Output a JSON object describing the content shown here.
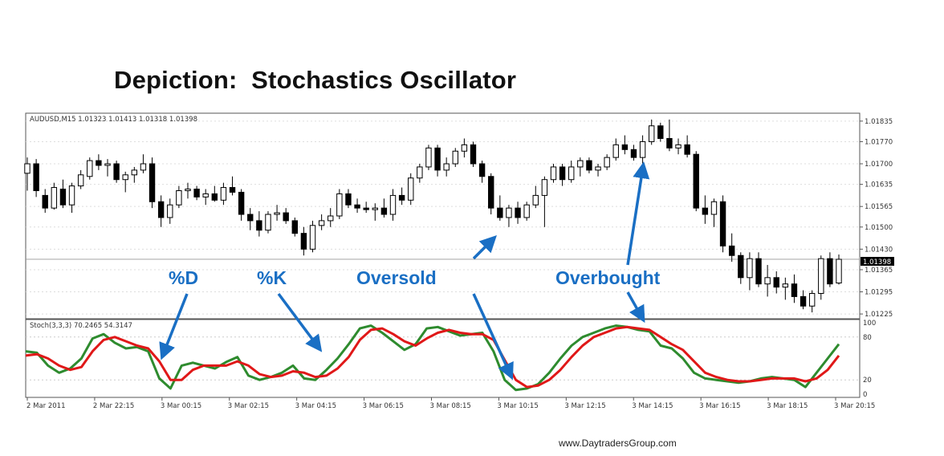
{
  "title": "Depiction:  Stochastics Oscillator",
  "footer": "www.DaytradersGroup.com",
  "chart_data": [
    {
      "type": "candlestick",
      "info": "AUDUSD,M15  1.01323 1.01413 1.01318 1.01398",
      "current_price_label": "1.01398",
      "price_ticks": [
        "1.01835",
        "1.01770",
        "1.01700",
        "1.01635",
        "1.01565",
        "1.01500",
        "1.01430",
        "1.01365",
        "1.01295",
        "1.01225"
      ],
      "ylim": [
        1.0121,
        1.0186
      ],
      "current_price": 1.01398,
      "candles": [
        [
          1.0167,
          1.0172,
          1.01615,
          1.017
        ],
        [
          1.017,
          1.01715,
          1.01595,
          1.01615
        ],
        [
          1.016,
          1.0162,
          1.01545,
          1.0156
        ],
        [
          1.0156,
          1.0164,
          1.01555,
          1.01625
        ],
        [
          1.0162,
          1.0165,
          1.0156,
          1.0157
        ],
        [
          1.0157,
          1.0164,
          1.01545,
          1.0163
        ],
        [
          1.0163,
          1.0168,
          1.0162,
          1.01665
        ],
        [
          1.0166,
          1.0172,
          1.0165,
          1.0171
        ],
        [
          1.0171,
          1.0173,
          1.0168,
          1.01695
        ],
        [
          1.01695,
          1.01715,
          1.0166,
          1.017
        ],
        [
          1.017,
          1.0171,
          1.0164,
          1.0165
        ],
        [
          1.0165,
          1.01675,
          1.0161,
          1.01665
        ],
        [
          1.01665,
          1.0169,
          1.0164,
          1.0168
        ],
        [
          1.0168,
          1.0173,
          1.0167,
          1.017
        ],
        [
          1.017,
          1.0172,
          1.0156,
          1.0158
        ],
        [
          1.0158,
          1.016,
          1.015,
          1.0153
        ],
        [
          1.0153,
          1.0159,
          1.0151,
          1.0157
        ],
        [
          1.0157,
          1.0163,
          1.0156,
          1.01615
        ],
        [
          1.01615,
          1.0164,
          1.0159,
          1.0162
        ],
        [
          1.0162,
          1.0163,
          1.01585,
          1.01595
        ],
        [
          1.01595,
          1.0162,
          1.0157,
          1.01605
        ],
        [
          1.01605,
          1.0163,
          1.0158,
          1.01585
        ],
        [
          1.01585,
          1.0164,
          1.0157,
          1.01625
        ],
        [
          1.01625,
          1.0166,
          1.016,
          1.0161
        ],
        [
          1.0161,
          1.0162,
          1.0152,
          1.0154
        ],
        [
          1.0154,
          1.0156,
          1.0149,
          1.0152
        ],
        [
          1.0152,
          1.0155,
          1.0147,
          1.0149
        ],
        [
          1.0149,
          1.0155,
          1.0148,
          1.0154
        ],
        [
          1.0154,
          1.0157,
          1.0152,
          1.01545
        ],
        [
          1.01545,
          1.0156,
          1.0151,
          1.0152
        ],
        [
          1.0152,
          1.0153,
          1.0147,
          1.0148
        ],
        [
          1.0148,
          1.015,
          1.0141,
          1.0143
        ],
        [
          1.0143,
          1.0152,
          1.0142,
          1.01505
        ],
        [
          1.01505,
          1.0154,
          1.0149,
          1.0152
        ],
        [
          1.0152,
          1.0156,
          1.015,
          1.01535
        ],
        [
          1.01535,
          1.0162,
          1.01525,
          1.01605
        ],
        [
          1.01605,
          1.0162,
          1.0156,
          1.0157
        ],
        [
          1.0157,
          1.0159,
          1.01545,
          1.0156
        ],
        [
          1.0156,
          1.0158,
          1.01545,
          1.01555
        ],
        [
          1.01555,
          1.01575,
          1.0152,
          1.0156
        ],
        [
          1.0156,
          1.0159,
          1.0153,
          1.0154
        ],
        [
          1.0154,
          1.0162,
          1.0152,
          1.016
        ],
        [
          1.016,
          1.01625,
          1.0157,
          1.01585
        ],
        [
          1.01585,
          1.0167,
          1.0157,
          1.01655
        ],
        [
          1.01655,
          1.017,
          1.0164,
          1.0169
        ],
        [
          1.0169,
          1.0176,
          1.0168,
          1.0175
        ],
        [
          1.0175,
          1.0176,
          1.0166,
          1.0168
        ],
        [
          1.0168,
          1.0172,
          1.0166,
          1.017
        ],
        [
          1.017,
          1.0175,
          1.0169,
          1.0174
        ],
        [
          1.0174,
          1.0178,
          1.0172,
          1.0176
        ],
        [
          1.0176,
          1.0177,
          1.0169,
          1.017
        ],
        [
          1.017,
          1.0171,
          1.0164,
          1.0166
        ],
        [
          1.0166,
          1.0167,
          1.0154,
          1.0156
        ],
        [
          1.0156,
          1.016,
          1.0152,
          1.0153
        ],
        [
          1.0153,
          1.0157,
          1.015,
          1.0156
        ],
        [
          1.0156,
          1.0158,
          1.0151,
          1.0153
        ],
        [
          1.0153,
          1.0158,
          1.0152,
          1.0157
        ],
        [
          1.0157,
          1.0163,
          1.0156,
          1.016
        ],
        [
          1.016,
          1.0166,
          1.015,
          1.0165
        ],
        [
          1.0165,
          1.017,
          1.0164,
          1.0169
        ],
        [
          1.0169,
          1.017,
          1.0163,
          1.0165
        ],
        [
          1.0165,
          1.0171,
          1.0164,
          1.0169
        ],
        [
          1.0169,
          1.0172,
          1.0166,
          1.0171
        ],
        [
          1.0171,
          1.0172,
          1.0167,
          1.0168
        ],
        [
          1.0168,
          1.017,
          1.0166,
          1.0169
        ],
        [
          1.0169,
          1.0173,
          1.0168,
          1.0172
        ],
        [
          1.0172,
          1.0178,
          1.0171,
          1.0176
        ],
        [
          1.0176,
          1.0179,
          1.0173,
          1.01745
        ],
        [
          1.01745,
          1.0176,
          1.0171,
          1.0172
        ],
        [
          1.0172,
          1.0179,
          1.017,
          1.0177
        ],
        [
          1.0177,
          1.0184,
          1.0176,
          1.0182
        ],
        [
          1.0182,
          1.0183,
          1.0177,
          1.0178
        ],
        [
          1.0178,
          1.0184,
          1.0174,
          1.0175
        ],
        [
          1.0175,
          1.0178,
          1.0173,
          1.0176
        ],
        [
          1.0176,
          1.0179,
          1.0172,
          1.0173
        ],
        [
          1.0173,
          1.0174,
          1.0155,
          1.0156
        ],
        [
          1.0156,
          1.016,
          1.0151,
          1.0154
        ],
        [
          1.0154,
          1.0159,
          1.015,
          1.0158
        ],
        [
          1.0158,
          1.016,
          1.0142,
          1.0144
        ],
        [
          1.0144,
          1.0148,
          1.0139,
          1.0141
        ],
        [
          1.0141,
          1.0142,
          1.0132,
          1.0134
        ],
        [
          1.0134,
          1.0142,
          1.013,
          1.014
        ],
        [
          1.014,
          1.0142,
          1.0131,
          1.0132
        ],
        [
          1.0132,
          1.0138,
          1.0128,
          1.0134
        ],
        [
          1.0134,
          1.0136,
          1.0129,
          1.0131
        ],
        [
          1.0131,
          1.0134,
          1.0127,
          1.0132
        ],
        [
          1.0132,
          1.0135,
          1.0126,
          1.0128
        ],
        [
          1.0128,
          1.013,
          1.0124,
          1.0125
        ],
        [
          1.0125,
          1.013,
          1.0123,
          1.0129
        ],
        [
          1.0129,
          1.0141,
          1.0127,
          1.014
        ],
        [
          1.014,
          1.0142,
          1.0131,
          1.0132
        ],
        [
          1.01323,
          1.01413,
          1.01318,
          1.01398
        ]
      ]
    },
    {
      "type": "line",
      "info": "Stoch(3,3,3) 70.2465 54.3147",
      "y_ticks": [
        "100",
        "80",
        "20",
        "0"
      ],
      "ylim": [
        0,
        100
      ],
      "x_tick_labels": [
        "2 Mar 2011",
        "2 Mar 22:15",
        "3 Mar 00:15",
        "3 Mar 02:15",
        "3 Mar 04:15",
        "3 Mar 06:15",
        "3 Mar 08:15",
        "3 Mar 10:15",
        "3 Mar 12:15",
        "3 Mar 14:15",
        "3 Mar 16:15",
        "3 Mar 18:15",
        "3 Mar 20:15"
      ],
      "series": [
        {
          "color": "#2e8b2e",
          "values": [
            60,
            58,
            40,
            30,
            36,
            50,
            78,
            84,
            72,
            64,
            66,
            60,
            22,
            8,
            40,
            44,
            40,
            36,
            45,
            52,
            26,
            20,
            24,
            30,
            40,
            22,
            20,
            34,
            50,
            70,
            92,
            96,
            86,
            74,
            62,
            70,
            92,
            94,
            88,
            82,
            84,
            86,
            60,
            20,
            6,
            8,
            14,
            30,
            50,
            68,
            80,
            86,
            92,
            96,
            94,
            90,
            88,
            68,
            64,
            50,
            30,
            22,
            20,
            18,
            16,
            18,
            22,
            24,
            22,
            20,
            10,
            30,
            50,
            70
          ]
        },
        {
          "color": "#e01818",
          "values": [
            54,
            56,
            50,
            40,
            34,
            38,
            60,
            76,
            80,
            74,
            68,
            64,
            46,
            20,
            20,
            34,
            40,
            40,
            40,
            46,
            40,
            28,
            24,
            26,
            32,
            30,
            24,
            26,
            36,
            52,
            76,
            90,
            92,
            84,
            74,
            68,
            78,
            86,
            90,
            86,
            84,
            84,
            76,
            48,
            20,
            10,
            12,
            20,
            34,
            52,
            68,
            80,
            86,
            92,
            94,
            92,
            90,
            80,
            70,
            62,
            46,
            30,
            24,
            20,
            18,
            18,
            20,
            22,
            22,
            22,
            18,
            22,
            34,
            54
          ]
        }
      ]
    }
  ],
  "annotations": {
    "d_label": "%D",
    "k_label": "%K",
    "oversold": "Oversold",
    "overbought": "Overbought"
  },
  "colors": {
    "bull_candle": "#ffffff",
    "bear_candle": "#000000",
    "annotation": "#1a6fc4",
    "k_line": "#2e8b2e",
    "d_line": "#e01818"
  }
}
